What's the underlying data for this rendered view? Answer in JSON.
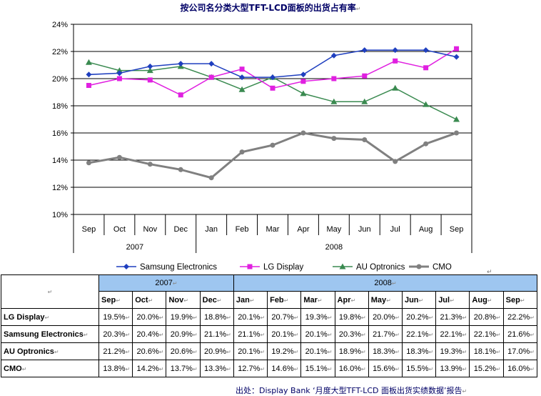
{
  "title": "按公司名分类大型TFT-LCD面板的出货占有率",
  "chart_data": {
    "type": "line",
    "categories": [
      "Sep",
      "Oct",
      "Nov",
      "Dec",
      "Jan",
      "Feb",
      "Mar",
      "Apr",
      "May",
      "Jun",
      "Jul",
      "Aug",
      "Sep"
    ],
    "year_groups": [
      {
        "label": "2007",
        "span": 4
      },
      {
        "label": "2008",
        "span": 9
      }
    ],
    "yticks": [
      "24%",
      "22%",
      "20%",
      "18%",
      "16%",
      "14%",
      "12%",
      "10%"
    ],
    "ylim": [
      10,
      24
    ],
    "grid": true,
    "legend_position": "bottom",
    "series": [
      {
        "name": "Samsung Electronics",
        "color": "#1f3fbf",
        "marker": "diamond",
        "values": [
          20.3,
          20.4,
          20.9,
          21.1,
          21.1,
          20.1,
          20.1,
          20.3,
          21.7,
          22.1,
          22.1,
          22.1,
          21.6
        ]
      },
      {
        "name": "LG Display",
        "color": "#e020e0",
        "marker": "square",
        "values": [
          19.5,
          20.0,
          19.9,
          18.8,
          20.1,
          20.7,
          19.3,
          19.8,
          20.0,
          20.2,
          21.3,
          20.8,
          22.2
        ]
      },
      {
        "name": "AU Optronics",
        "color": "#3a8a50",
        "marker": "triangle",
        "values": [
          21.2,
          20.6,
          20.6,
          20.9,
          20.1,
          19.2,
          20.1,
          18.9,
          18.3,
          18.3,
          19.3,
          18.1,
          17.0
        ]
      },
      {
        "name": "CMO",
        "color": "#808080",
        "marker": "circle",
        "values": [
          13.8,
          14.2,
          13.7,
          13.3,
          12.7,
          14.6,
          15.1,
          16.0,
          15.6,
          15.5,
          13.9,
          15.2,
          16.0
        ]
      }
    ]
  },
  "table": {
    "years": [
      {
        "label": "2007",
        "span": 4
      },
      {
        "label": "2008",
        "span": 9
      }
    ],
    "months": [
      "Sep",
      "Oct",
      "Nov",
      "Dec",
      "Jan",
      "Feb",
      "Mar",
      "Apr",
      "May",
      "Jun",
      "Jul",
      "Aug",
      "Sep"
    ],
    "rows": [
      {
        "label": "LG Display",
        "values": [
          "19.5%",
          "20.0%",
          "19.9%",
          "18.8%",
          "20.1%",
          "20.7%",
          "19.3%",
          "19.8%",
          "20.0%",
          "20.2%",
          "21.3%",
          "20.8%",
          "22.2%"
        ]
      },
      {
        "label": "Samsung Electronics",
        "values": [
          "20.3%",
          "20.4%",
          "20.9%",
          "21.1%",
          "21.1%",
          "20.1%",
          "20.1%",
          "20.3%",
          "21.7%",
          "22.1%",
          "22.1%",
          "22.1%",
          "21.6%"
        ]
      },
      {
        "label": "AU Optronics",
        "values": [
          "21.2%",
          "20.6%",
          "20.6%",
          "20.9%",
          "20.1%",
          "19.2%",
          "20.1%",
          "18.9%",
          "18.3%",
          "18.3%",
          "19.3%",
          "18.1%",
          "17.0%"
        ]
      },
      {
        "label": "CMO",
        "values": [
          "13.8%",
          "14.2%",
          "13.7%",
          "13.3%",
          "12.7%",
          "14.6%",
          "15.1%",
          "16.0%",
          "15.6%",
          "15.5%",
          "13.9%",
          "15.2%",
          "16.0%"
        ]
      }
    ]
  },
  "source_note": "出处：Display Bank ‘月度大型TFT-LCD 面板出货实绩数据’报告"
}
